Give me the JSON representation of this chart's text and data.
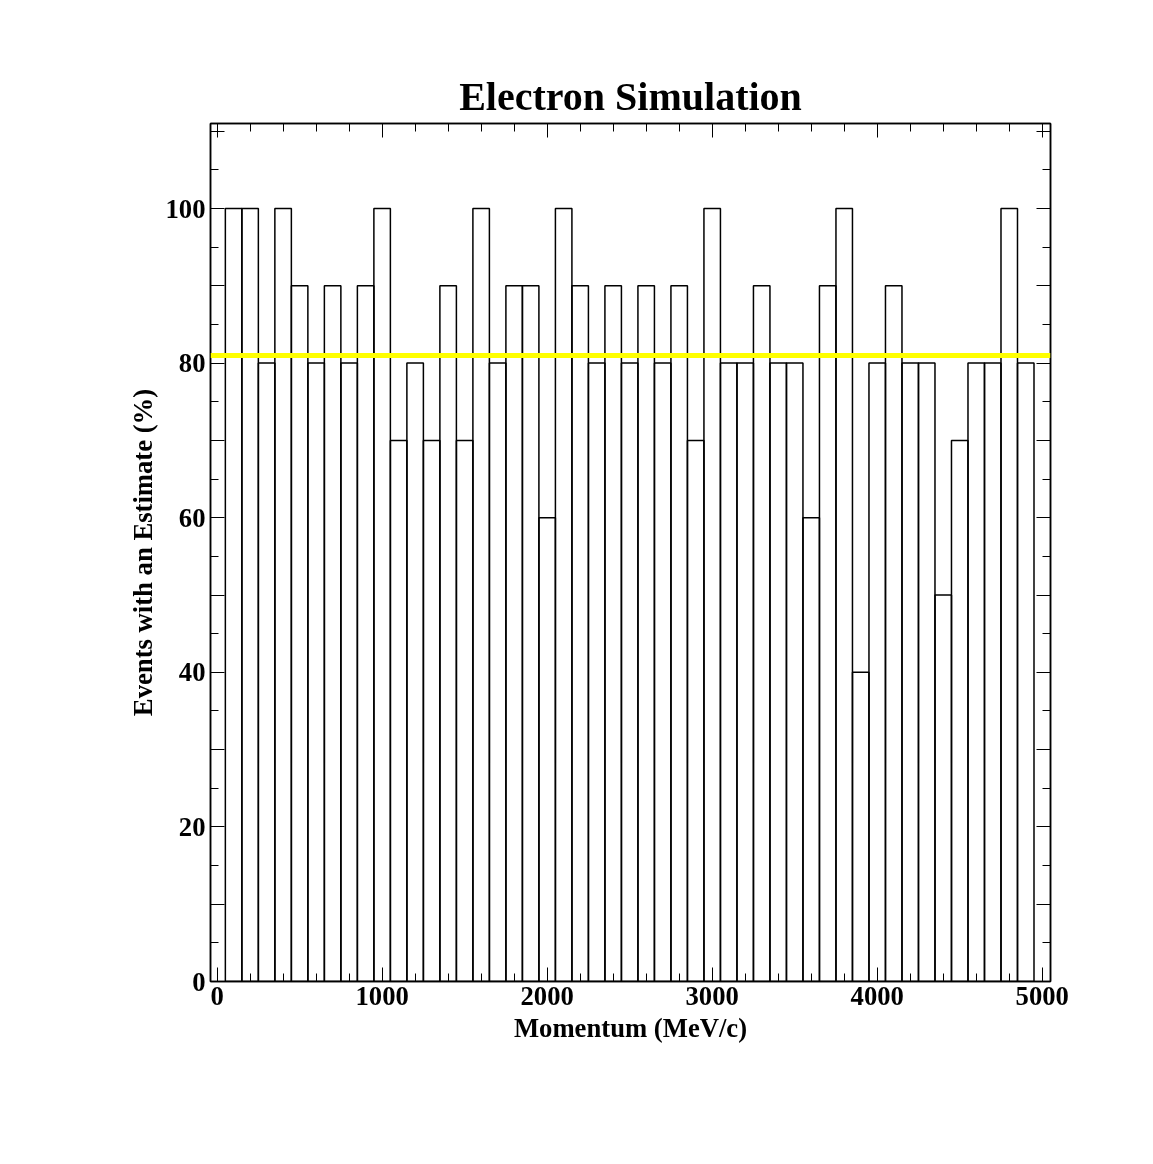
{
  "chart_data": {
    "type": "histogram",
    "title": "Electron Simulation",
    "xlabel": "Momentum (MeV/c)",
    "ylabel": "Events with an Estimate (%)",
    "bins": [
      50,
      150,
      250,
      350,
      450,
      550,
      650,
      750,
      850,
      950,
      1050,
      1150,
      1250,
      1350,
      1450,
      1550,
      1650,
      1750,
      1850,
      1950,
      2050,
      2150,
      2250,
      2350,
      2450,
      2550,
      2650,
      2750,
      2850,
      2950,
      3050,
      3150,
      3250,
      3350,
      3450,
      3550,
      3650,
      3750,
      3850,
      3950,
      4050,
      4150,
      4250,
      4350,
      4450,
      4550,
      4650,
      4750,
      4850,
      4950
    ],
    "values": [
      100,
      100,
      80,
      100,
      90,
      80,
      90,
      80,
      90,
      100,
      70,
      80,
      70,
      90,
      70,
      100,
      80,
      90,
      90,
      60,
      100,
      90,
      80,
      90,
      80,
      90,
      80,
      90,
      70,
      100,
      80,
      80,
      90,
      80,
      80,
      60,
      90,
      100,
      40,
      80,
      90,
      80,
      80,
      50,
      70,
      80,
      80,
      100,
      80
    ],
    "color": "#000000",
    "xlim": [
      -40,
      5050
    ],
    "ylim": [
      0,
      111
    ],
    "xticks": [
      0,
      1000,
      2000,
      3000,
      4000,
      5000
    ],
    "yticks": [
      0,
      {
        "value": 10,
        "label": null
      },
      20,
      {
        "value": 30,
        "label": null
      },
      40,
      {
        "value": 50,
        "label": null
      },
      60,
      {
        "value": 70,
        "label": null
      },
      80,
      {
        "value": 90,
        "label": null
      },
      100,
      {
        "value": 110,
        "label": null
      }
    ],
    "ref_lines": [
      {
        "axis": "y",
        "value": 81,
        "color": "#ffff00"
      }
    ],
    "grid": false
  }
}
